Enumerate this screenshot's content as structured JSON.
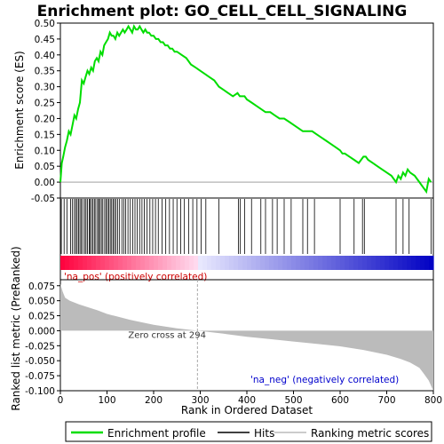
{
  "chart_data": {
    "type": "line",
    "title": "Enrichment plot: GO_CELL_CELL_SIGNALING",
    "n_genes": 800,
    "top_panel": {
      "ylabel": "Enrichment score (ES)",
      "ylim": [
        -0.05,
        0.5
      ],
      "yticks": [
        -0.05,
        0.0,
        0.05,
        0.1,
        0.15,
        0.2,
        0.25,
        0.3,
        0.35,
        0.4,
        0.45,
        0.5
      ],
      "ytick_labels": [
        "-0.05",
        "0.00",
        "0.05",
        "0.10",
        "0.15",
        "0.20",
        "0.25",
        "0.30",
        "0.35",
        "0.40",
        "0.45",
        "0.50"
      ],
      "series": [
        {
          "name": "Enrichment profile",
          "color": "#00dd00",
          "x": [
            0,
            3,
            6,
            10,
            14,
            18,
            22,
            26,
            30,
            34,
            38,
            42,
            46,
            50,
            54,
            58,
            62,
            66,
            70,
            74,
            78,
            82,
            86,
            90,
            94,
            98,
            102,
            106,
            110,
            114,
            118,
            122,
            126,
            130,
            134,
            138,
            142,
            146,
            150,
            154,
            158,
            162,
            166,
            170,
            174,
            178,
            182,
            186,
            190,
            195,
            200,
            205,
            210,
            215,
            220,
            225,
            230,
            235,
            240,
            245,
            250,
            260,
            270,
            280,
            290,
            300,
            310,
            320,
            330,
            340,
            350,
            360,
            370,
            380,
            385,
            390,
            395,
            400,
            410,
            420,
            430,
            440,
            450,
            460,
            470,
            480,
            490,
            500,
            510,
            520,
            530,
            540,
            550,
            560,
            570,
            580,
            590,
            600,
            605,
            610,
            620,
            630,
            640,
            650,
            655,
            660,
            670,
            680,
            690,
            700,
            710,
            720,
            725,
            730,
            735,
            740,
            745,
            750,
            760,
            770,
            780,
            785,
            790,
            795
          ],
          "y": [
            0.0,
            0.06,
            0.08,
            0.11,
            0.13,
            0.16,
            0.15,
            0.18,
            0.21,
            0.2,
            0.23,
            0.25,
            0.32,
            0.31,
            0.33,
            0.35,
            0.34,
            0.36,
            0.35,
            0.38,
            0.39,
            0.38,
            0.41,
            0.4,
            0.43,
            0.44,
            0.45,
            0.47,
            0.46,
            0.46,
            0.45,
            0.47,
            0.46,
            0.47,
            0.48,
            0.47,
            0.48,
            0.49,
            0.48,
            0.47,
            0.49,
            0.48,
            0.48,
            0.49,
            0.48,
            0.47,
            0.48,
            0.47,
            0.47,
            0.46,
            0.46,
            0.45,
            0.45,
            0.44,
            0.44,
            0.43,
            0.43,
            0.42,
            0.42,
            0.41,
            0.41,
            0.4,
            0.39,
            0.37,
            0.36,
            0.35,
            0.34,
            0.33,
            0.32,
            0.3,
            0.29,
            0.28,
            0.27,
            0.28,
            0.27,
            0.27,
            0.27,
            0.26,
            0.25,
            0.24,
            0.23,
            0.22,
            0.22,
            0.21,
            0.2,
            0.2,
            0.19,
            0.18,
            0.17,
            0.16,
            0.16,
            0.16,
            0.15,
            0.14,
            0.13,
            0.12,
            0.11,
            0.1,
            0.09,
            0.09,
            0.08,
            0.07,
            0.06,
            0.08,
            0.08,
            0.07,
            0.06,
            0.05,
            0.04,
            0.03,
            0.02,
            0.0,
            0.02,
            0.01,
            0.03,
            0.02,
            0.04,
            0.03,
            0.02,
            0.0,
            -0.02,
            -0.03,
            0.01,
            0.0
          ]
        }
      ],
      "hits": [
        2,
        8,
        14,
        22,
        26,
        30,
        33,
        36,
        39,
        42,
        45,
        48,
        52,
        55,
        58,
        62,
        64,
        67,
        70,
        73,
        76,
        80,
        82,
        85,
        88,
        91,
        95,
        98,
        101,
        104,
        107,
        110,
        113,
        116,
        119,
        123,
        127,
        132,
        136,
        140,
        145,
        150,
        155,
        160,
        165,
        170,
        175,
        180,
        186,
        192,
        198,
        204,
        210,
        218,
        226,
        234,
        242,
        250,
        258,
        266,
        275,
        284,
        293,
        302,
        312,
        340,
        382,
        386,
        395,
        410,
        430,
        440,
        455,
        465,
        480,
        495,
        520,
        530,
        545,
        600,
        630,
        648,
        652,
        720,
        735,
        748,
        795
      ]
    },
    "middle_panel": {
      "labels": [
        "'na_pos' (positively correlated)",
        "'na_neg' (negatively correlated)"
      ]
    },
    "bottom_panel": {
      "ylabel": "Ranked list metric (PreRanked)",
      "xlabel": "Rank in Ordered Dataset",
      "ylim": [
        -0.1,
        0.085
      ],
      "yticks": [
        -0.1,
        -0.075,
        -0.05,
        -0.025,
        0.0,
        0.025,
        0.05,
        0.075
      ],
      "ytick_labels": [
        "-0.100",
        "-0.075",
        "-0.050",
        "-0.025",
        "0.000",
        "0.025",
        "0.050",
        "0.075"
      ],
      "xlim": [
        0,
        800
      ],
      "xticks": [
        0,
        100,
        200,
        300,
        400,
        500,
        600,
        700,
        800
      ],
      "xtick_labels": [
        "0",
        "100",
        "200",
        "300",
        "400",
        "500",
        "600",
        "700",
        "800"
      ],
      "zero_cross_label": "Zero cross at 294",
      "zero_cross": 294,
      "metric_x": [
        0,
        5,
        10,
        20,
        40,
        60,
        80,
        100,
        150,
        200,
        250,
        294,
        350,
        400,
        450,
        500,
        550,
        600,
        650,
        700,
        730,
        750,
        770,
        780,
        790,
        797,
        800
      ],
      "metric_y": [
        0.078,
        0.065,
        0.055,
        0.05,
        0.044,
        0.039,
        0.034,
        0.028,
        0.018,
        0.01,
        0.004,
        0.0,
        -0.005,
        -0.01,
        -0.014,
        -0.018,
        -0.022,
        -0.026,
        -0.032,
        -0.04,
        -0.047,
        -0.053,
        -0.062,
        -0.072,
        -0.083,
        -0.095,
        -0.1
      ]
    },
    "legend": {
      "items": [
        {
          "label": "Enrichment profile",
          "color": "#00dd00"
        },
        {
          "label": "Hits",
          "color": "#000000"
        },
        {
          "label": "Ranking metric scores",
          "color": "#bbbbbb"
        }
      ]
    }
  }
}
